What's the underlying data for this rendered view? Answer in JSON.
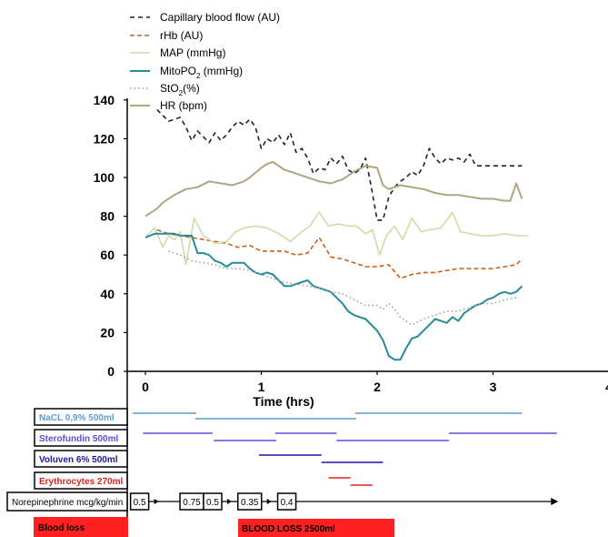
{
  "chart_data": {
    "type": "line",
    "xlabel": "Time (hrs)",
    "xlim": [
      -0.15,
      4
    ],
    "ylim": [
      0,
      140
    ],
    "x_ticks": [
      "0",
      "1",
      "2",
      "3",
      "4"
    ],
    "y_ticks": [
      "0",
      "20",
      "40",
      "60",
      "80",
      "100",
      "120",
      "140"
    ],
    "legend": [
      {
        "label": "Capillary blood flow (AU)",
        "color": "#222222",
        "style": "dashed"
      },
      {
        "label": "rHb (AU)",
        "color": "#c8621b",
        "style": "dashed"
      },
      {
        "label": "MAP (mmHg)",
        "color": "#d6deb0",
        "style": "solid"
      },
      {
        "label": "MitoPO",
        "sub": "2",
        "suffix": " (mmHg)",
        "color": "#238c96",
        "style": "solid"
      },
      {
        "label": "StO",
        "sub": "2",
        "suffix": "(%)",
        "color": "#999999",
        "style": "dotted"
      },
      {
        "label": "HR (bpm)",
        "color": "#b0a57c",
        "style": "solid"
      }
    ],
    "series": [
      {
        "key": "capillary",
        "x": [
          0.1,
          0.2,
          0.3,
          0.35,
          0.4,
          0.45,
          0.5,
          0.55,
          0.6,
          0.65,
          0.7,
          0.75,
          0.8,
          0.85,
          0.9,
          0.95,
          1.0,
          1.05,
          1.1,
          1.15,
          1.2,
          1.25,
          1.3,
          1.35,
          1.4,
          1.45,
          1.5,
          1.55,
          1.6,
          1.65,
          1.7,
          1.75,
          1.8,
          1.85,
          1.9,
          1.95,
          2.0,
          2.05,
          2.1,
          2.15,
          2.2,
          2.25,
          2.3,
          2.35,
          2.4,
          2.45,
          2.5,
          2.55,
          2.6,
          2.65,
          2.7,
          2.75,
          2.8,
          2.85,
          2.9,
          2.95,
          3.0,
          3.05,
          3.1,
          3.15,
          3.2,
          3.25
        ],
        "y": [
          135,
          129,
          131,
          126,
          119,
          124,
          121,
          118,
          123,
          119,
          122,
          126,
          129,
          127,
          130,
          126,
          115,
          120,
          118,
          122,
          117,
          123,
          113,
          115,
          110,
          102,
          105,
          104,
          110,
          107,
          111,
          104,
          102,
          104,
          110,
          95,
          78,
          78,
          90,
          95,
          98,
          100,
          103,
          101,
          106,
          115,
          110,
          107,
          110,
          109,
          110,
          108,
          112,
          106,
          106,
          106,
          106,
          106,
          106,
          106,
          106,
          106
        ]
      },
      {
        "key": "rhb",
        "x": [
          0.1,
          0.2,
          0.3,
          0.4,
          0.5,
          0.6,
          0.7,
          0.8,
          0.9,
          1.0,
          1.1,
          1.2,
          1.3,
          1.4,
          1.5,
          1.6,
          1.7,
          1.8,
          1.9,
          2.0,
          2.1,
          2.2,
          2.3,
          2.4,
          2.5,
          2.6,
          2.7,
          2.8,
          2.9,
          3.0,
          3.1,
          3.2,
          3.25
        ],
        "y": [
          73,
          71,
          70,
          69,
          68,
          67,
          66,
          64,
          65,
          62,
          62,
          62,
          60,
          61,
          69,
          59,
          58,
          56,
          54,
          54,
          55,
          48,
          50,
          51,
          51,
          52,
          53,
          53,
          53,
          53,
          54,
          55,
          58
        ]
      },
      {
        "key": "map",
        "x": [
          0,
          0.08,
          0.15,
          0.2,
          0.25,
          0.3,
          0.35,
          0.42,
          0.5,
          0.6,
          0.7,
          0.78,
          0.85,
          0.95,
          1.05,
          1.15,
          1.25,
          1.35,
          1.42,
          1.5,
          1.58,
          1.67,
          1.75,
          1.82,
          1.9,
          1.96,
          2.02,
          2.08,
          2.15,
          2.22,
          2.3,
          2.38,
          2.45,
          2.55,
          2.65,
          2.72,
          2.8,
          2.9,
          3.0,
          3.1,
          3.2,
          3.3
        ],
        "y": [
          69,
          74,
          64,
          70,
          68,
          72,
          55,
          79,
          70,
          66,
          67,
          72,
          74,
          75,
          74,
          71,
          67,
          72,
          75,
          82,
          75,
          76,
          75,
          75,
          71,
          73,
          60,
          70,
          75,
          68,
          79,
          72,
          73,
          74,
          82,
          72,
          71,
          70,
          70,
          71,
          70,
          70
        ]
      },
      {
        "key": "mito",
        "x": [
          0,
          0.08,
          0.15,
          0.25,
          0.3,
          0.35,
          0.4,
          0.45,
          0.5,
          0.55,
          0.6,
          0.65,
          0.7,
          0.75,
          0.8,
          0.85,
          0.9,
          0.95,
          1.0,
          1.05,
          1.1,
          1.15,
          1.2,
          1.25,
          1.3,
          1.35,
          1.4,
          1.45,
          1.5,
          1.55,
          1.6,
          1.65,
          1.7,
          1.75,
          1.8,
          1.85,
          1.9,
          1.95,
          2.0,
          2.05,
          2.1,
          2.15,
          2.2,
          2.25,
          2.3,
          2.35,
          2.4,
          2.45,
          2.5,
          2.55,
          2.6,
          2.65,
          2.7,
          2.75,
          2.8,
          2.85,
          2.9,
          2.95,
          3.0,
          3.05,
          3.1,
          3.15,
          3.2,
          3.25
        ],
        "y": [
          69,
          71,
          71,
          71,
          70,
          70,
          70,
          61,
          61,
          60,
          57,
          56,
          54,
          56,
          56,
          56,
          53,
          51,
          50,
          51,
          50,
          47,
          44,
          44,
          45,
          46,
          47,
          44,
          43,
          42,
          41,
          38,
          35,
          31,
          29,
          28,
          27,
          24,
          21,
          16,
          8,
          6,
          6,
          12,
          17,
          18,
          21,
          24,
          27,
          26,
          25,
          28,
          26,
          30,
          32,
          34,
          35,
          37,
          38,
          40,
          41,
          40,
          41,
          44
        ]
      },
      {
        "key": "sto2",
        "x": [
          0.2,
          0.3,
          0.4,
          0.5,
          0.6,
          0.7,
          0.8,
          0.9,
          1.0,
          1.1,
          1.2,
          1.3,
          1.4,
          1.5,
          1.6,
          1.7,
          1.8,
          1.9,
          2.0,
          2.05,
          2.1,
          2.15,
          2.2,
          2.3,
          2.4,
          2.5,
          2.6,
          2.7,
          2.8,
          2.9,
          3.0,
          3.1,
          3.2
        ],
        "y": [
          62,
          60,
          57,
          56,
          55,
          53,
          53,
          52,
          50,
          48,
          46,
          45,
          44,
          43,
          41,
          40,
          37,
          34,
          34,
          32,
          35,
          32,
          28,
          24,
          27,
          29,
          31,
          31,
          33,
          35,
          35,
          37,
          38
        ]
      },
      {
        "key": "hr",
        "x": [
          0,
          0.1,
          0.15,
          0.25,
          0.35,
          0.45,
          0.55,
          0.65,
          0.75,
          0.85,
          0.9,
          1.0,
          1.05,
          1.1,
          1.2,
          1.3,
          1.4,
          1.5,
          1.6,
          1.7,
          1.8,
          1.9,
          2.0,
          2.05,
          2.1,
          2.2,
          2.3,
          2.4,
          2.5,
          2.6,
          2.7,
          2.8,
          2.9,
          3.0,
          3.1,
          3.15,
          3.2,
          3.25
        ],
        "y": [
          80,
          84,
          87,
          91,
          94,
          95,
          98,
          97,
          96,
          98,
          100,
          105,
          107,
          108,
          104,
          102,
          100,
          98,
          97,
          99,
          103,
          106,
          105,
          96,
          94,
          96,
          95,
          94,
          92,
          91,
          91,
          90,
          89,
          89,
          88,
          88,
          97,
          89
        ]
      }
    ]
  },
  "timeline": {
    "rows": [
      {
        "label": "NaCL 0,9% 500ml",
        "color": "#5b9bd5",
        "segments": [
          [
            -0.11,
            0.44
          ],
          [
            0.43,
            1.82
          ],
          [
            1.81,
            3.25
          ]
        ]
      },
      {
        "label": "Sterofundin 500ml",
        "color": "#5a50d8",
        "segments": [
          [
            -0.02,
            0.58
          ],
          [
            0.59,
            1.13
          ],
          [
            1.12,
            1.65
          ],
          [
            1.65,
            2.62
          ],
          [
            2.62,
            3.55
          ]
        ]
      },
      {
        "label": "Voluven 6% 500ml",
        "color": "#1c16a0",
        "segments": [
          [
            0.98,
            1.52
          ],
          [
            1.52,
            2.05
          ]
        ]
      },
      {
        "label": "Erythrocytes 270ml",
        "color": "#e3201b",
        "segments": [
          [
            1.58,
            1.77
          ],
          [
            1.77,
            1.96
          ]
        ]
      }
    ],
    "norepinephrine": {
      "label": "Norepinephrine mcg/kg/min",
      "doses": [
        "0.5",
        "0.75",
        "0.5",
        "0.35",
        "0.4"
      ],
      "dose_x": [
        -0.05,
        0.4,
        0.58,
        0.9,
        1.22
      ],
      "arrow_end": 3.5
    },
    "blood_loss": {
      "label": "Blood loss",
      "bar_label": "BLOOD LOSS 2500ml",
      "start": 0.8,
      "end": 2.15,
      "color": "#ff2020"
    }
  }
}
